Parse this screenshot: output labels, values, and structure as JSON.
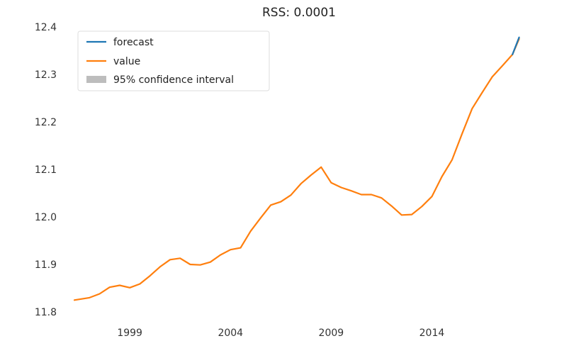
{
  "chart_data": {
    "type": "line",
    "title": "RSS: 0.0001",
    "xlabel": "",
    "ylabel": "",
    "ylim": [
      11.8,
      12.4
    ],
    "xlim": [
      "1996-04",
      "2018-06"
    ],
    "y_ticks": [
      "11.8",
      "11.9",
      "12.0",
      "12.1",
      "12.2",
      "12.3",
      "12.4"
    ],
    "x_ticks": [
      "1999",
      "2004",
      "2009",
      "2014"
    ],
    "grid": false,
    "legend_position": "top-left",
    "legend": [
      "forecast",
      "value",
      "95% confidence interval"
    ],
    "series": [
      {
        "name": "value",
        "color": "#ff7f0e",
        "x": [
          "1996-04",
          "1997-01",
          "1997-07",
          "1998-01",
          "1998-07",
          "1999-01",
          "1999-07",
          "2000-01",
          "2000-07",
          "2001-01",
          "2001-07",
          "2002-01",
          "2002-07",
          "2003-01",
          "2003-07",
          "2004-01",
          "2004-07",
          "2005-01",
          "2005-07",
          "2006-01",
          "2006-07",
          "2007-01",
          "2007-07",
          "2008-01",
          "2008-07",
          "2009-01",
          "2009-07",
          "2010-01",
          "2010-07",
          "2011-01",
          "2011-07",
          "2012-01",
          "2012-07",
          "2013-01",
          "2013-07",
          "2014-01",
          "2014-07",
          "2015-01",
          "2015-07",
          "2016-01",
          "2016-07",
          "2017-01",
          "2017-07",
          "2018-01",
          "2018-05"
        ],
        "y": [
          11.825,
          11.83,
          11.838,
          11.852,
          11.856,
          11.851,
          11.859,
          11.876,
          11.895,
          11.91,
          11.913,
          11.9,
          11.899,
          11.905,
          11.92,
          11.931,
          11.935,
          11.97,
          11.998,
          12.025,
          12.032,
          12.046,
          12.07,
          12.088,
          12.105,
          12.072,
          12.062,
          12.055,
          12.047,
          12.047,
          12.04,
          12.023,
          12.004,
          12.005,
          12.022,
          12.043,
          12.085,
          12.12,
          12.175,
          12.228,
          12.262,
          12.295,
          12.318,
          12.342,
          12.375
        ]
      },
      {
        "name": "forecast",
        "color": "#1f77b4",
        "x": [
          "2018-01",
          "2018-05"
        ],
        "y": [
          12.342,
          12.378
        ]
      }
    ],
    "confidence_interval": {
      "name": "95% confidence interval",
      "color": "#bdbdbd"
    }
  }
}
